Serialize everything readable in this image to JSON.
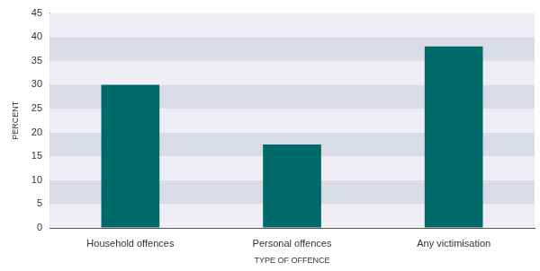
{
  "chart_data": {
    "type": "bar",
    "categories": [
      "Household offences",
      "Personal offences",
      "Any victimisation"
    ],
    "values": [
      30,
      17.5,
      38
    ],
    "color": "#006a6a",
    "x_label": "TYPE OF OFFENCE",
    "y_label": "PERCENT",
    "ylim": [
      0,
      45
    ],
    "yticks": [
      0,
      5,
      10,
      15,
      20,
      25,
      30,
      35,
      40,
      45
    ],
    "grid": true
  }
}
